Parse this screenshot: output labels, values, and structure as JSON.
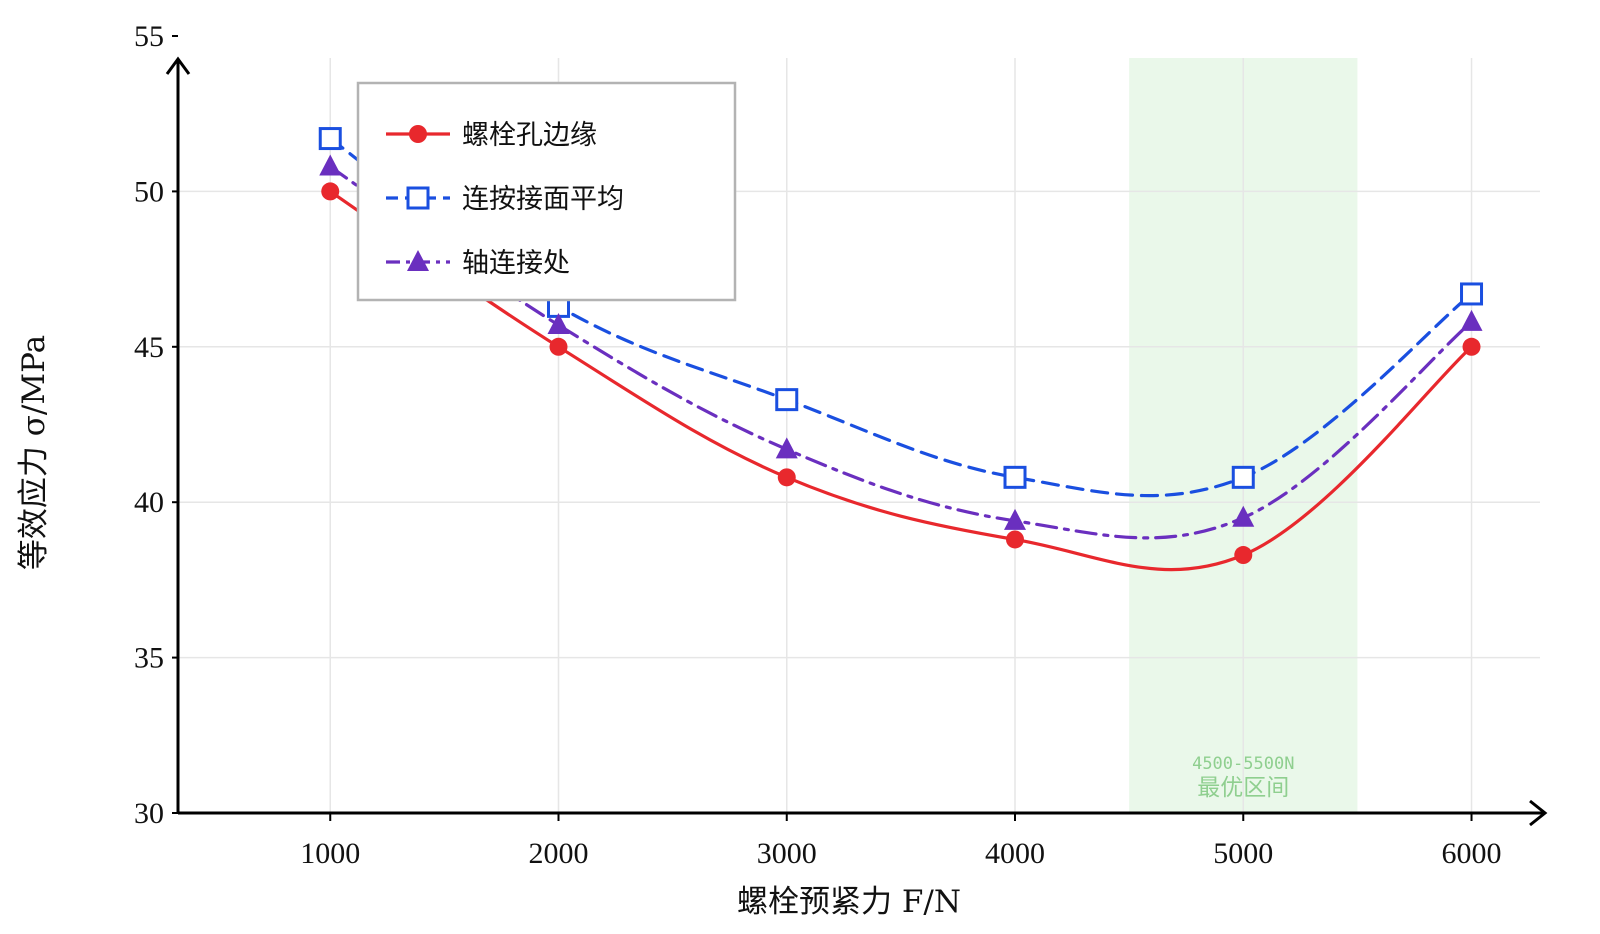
{
  "chart_data": {
    "type": "line",
    "title": "",
    "xlabel": "螺栓预紧力 F/N",
    "ylabel": "等效应力 σ/MPa",
    "x": [
      1000,
      2000,
      3000,
      4000,
      5000,
      6000
    ],
    "xticks": [
      "1000",
      "2000",
      "3000",
      "4000",
      "5000",
      "6000"
    ],
    "xlim": [
      333,
      6300
    ],
    "yticks": [
      "30",
      "35",
      "40",
      "45",
      "50",
      "55"
    ],
    "ylim": [
      30,
      55
    ],
    "grid": true,
    "legend_position": "top-left",
    "series": [
      {
        "name": "螺栓孔边缘",
        "values": [
          50.0,
          45.0,
          40.8,
          38.8,
          38.3,
          45.0
        ],
        "color": "#e8282d",
        "marker": "circle",
        "line_style": "solid"
      },
      {
        "name": "连按接面平均",
        "values": [
          51.7,
          46.3,
          43.3,
          40.8,
          40.8,
          46.7
        ],
        "color": "#1a4fe0",
        "marker": "square-open",
        "line_style": "dashed"
      },
      {
        "name": "轴连接处",
        "values": [
          50.8,
          45.7,
          41.7,
          39.4,
          39.5,
          45.8
        ],
        "color": "#6a2fbf",
        "marker": "triangle",
        "line_style": "dashdot"
      }
    ],
    "annotations": [
      {
        "type": "band",
        "x_range": [
          4500,
          5500
        ],
        "color": "#eaf8ea",
        "label_line1": "4500-5500N",
        "label_line2": "最优区间"
      }
    ]
  }
}
